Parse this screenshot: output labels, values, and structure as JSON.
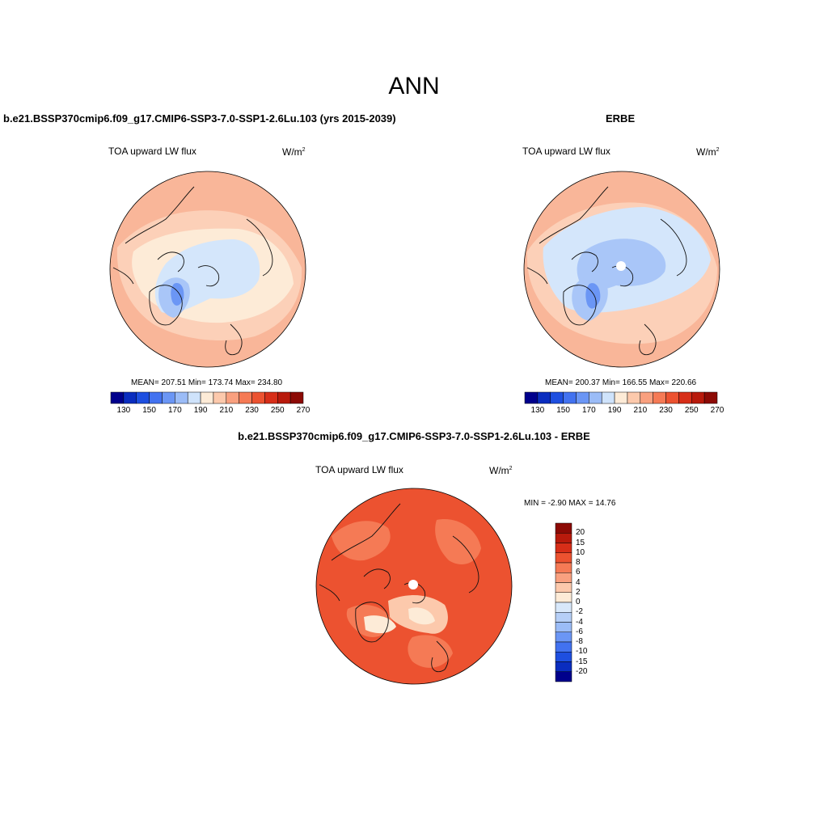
{
  "figure": {
    "title": "ANN"
  },
  "panels": [
    {
      "id": "model",
      "title": "b.e21.BSSP370cmip6.f09_g17.CMIP6-SSP3-7.0-SSP1-2.6Lu.103 (yrs 2015-2039)",
      "variable": "TOA upward LW flux",
      "units_base": "W/m",
      "units_exp": "2",
      "stats": "MEAN= 207.51  Min= 173.74  Max= 234.80",
      "has_pole_hole": false
    },
    {
      "id": "obs",
      "title": "ERBE",
      "variable": "TOA upward LW flux",
      "units_base": "W/m",
      "units_exp": "2",
      "stats": "MEAN= 200.37  Min= 166.55  Max= 220.66",
      "has_pole_hole": true
    },
    {
      "id": "diff",
      "title": "b.e21.BSSP370cmip6.f09_g17.CMIP6-SSP3-7.0-SSP1-2.6Lu.103 - ERBE",
      "variable": "TOA upward LW flux",
      "units_base": "W/m",
      "units_exp": "2",
      "stats": "MIN =  -2.90 MAX =  14.76",
      "has_pole_hole": true
    }
  ],
  "colorbar_field": {
    "colors": [
      "#00008c",
      "#0a2dbf",
      "#1e4fe0",
      "#4272f0",
      "#6b96f5",
      "#9bbcf7",
      "#cfe3fb",
      "#fdebd7",
      "#fcc9ac",
      "#f9a07f",
      "#f57a55",
      "#ec5230",
      "#d72e18",
      "#b81a0c",
      "#8c0a05"
    ],
    "tick_labels": [
      "130",
      "150",
      "170",
      "190",
      "210",
      "230",
      "250",
      "270"
    ]
  },
  "colorbar_diff": {
    "colors": [
      "#8c0a05",
      "#b81a0c",
      "#d72e18",
      "#ec5230",
      "#f57a55",
      "#f9a07f",
      "#fcc9ac",
      "#fdebd7",
      "#d8e8fa",
      "#b6cff7",
      "#9bbcf7",
      "#6b96f5",
      "#4272f0",
      "#1e4fe0",
      "#0a2dbf",
      "#00008c"
    ],
    "tick_labels": [
      "20",
      "15",
      "10",
      "8",
      "6",
      "4",
      "2",
      "0",
      "-2",
      "-4",
      "-6",
      "-8",
      "-10",
      "-15",
      "-20"
    ]
  },
  "map_colors": {
    "field_outer": "#f9b699",
    "field_mid": "#fcd0b8",
    "field_inner": "#fdebd7",
    "field_ice": "#d4e6fb",
    "field_ice2": "#a9c6f8",
    "field_ice3": "#6b96f5",
    "diff_outer": "#ec5230",
    "diff_mid": "#f57a55",
    "diff_light": "#fcc9ac",
    "diff_pale": "#fdebd7",
    "coast": "#111111"
  }
}
